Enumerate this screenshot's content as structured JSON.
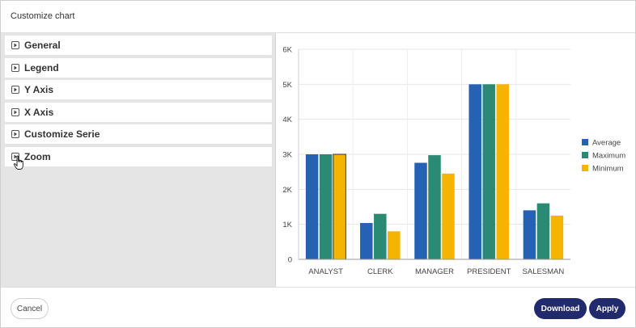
{
  "dialog": {
    "title": "Customize chart"
  },
  "sections": [
    {
      "label": "General"
    },
    {
      "label": "Legend"
    },
    {
      "label": "Y Axis"
    },
    {
      "label": "X Axis"
    },
    {
      "label": "Customize Serie"
    },
    {
      "label": "Zoom"
    }
  ],
  "footer": {
    "cancel_label": "Cancel",
    "download_label": "Download",
    "apply_label": "Apply"
  },
  "colors": {
    "primary_button": "#222a6e",
    "average": "#2662b3",
    "maximum": "#2b8a73",
    "minimum": "#f5b400"
  },
  "chart_data": {
    "type": "bar",
    "categories": [
      "ANALYST",
      "CLERK",
      "MANAGER",
      "PRESIDENT",
      "SALESMAN"
    ],
    "series": [
      {
        "name": "Average",
        "values": [
          3000,
          1037.5,
          2758,
          5000,
          1400
        ]
      },
      {
        "name": "Maximum",
        "values": [
          3000,
          1300,
          2975,
          5000,
          1600
        ]
      },
      {
        "name": "Minimum",
        "values": [
          3000,
          800,
          2450,
          5000,
          1250
        ]
      }
    ],
    "ylim": [
      0,
      6000
    ],
    "yticks": [
      "0",
      "1K",
      "2K",
      "3K",
      "4K",
      "5K",
      "6K"
    ],
    "title": "",
    "xlabel": "",
    "ylabel": "",
    "grid": true,
    "legend_position": "right"
  }
}
